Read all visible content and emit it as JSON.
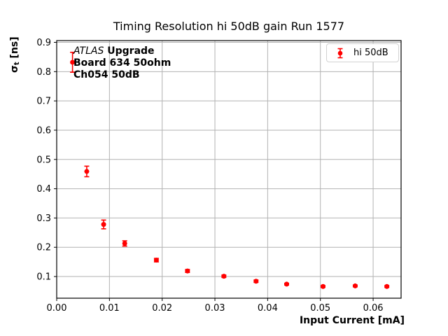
{
  "chart_data": {
    "type": "scatter",
    "title": "Timing Resolution hi 50dB gain Run 1577",
    "xlabel": "Input Current [mA]",
    "ylabel": {
      "symbol": "σ",
      "subscript": "t",
      "units": " [ns]"
    },
    "xlim": [
      0.0,
      0.0653
    ],
    "ylim": [
      0.026,
      0.906
    ],
    "xtick_values": [
      0.0,
      0.01,
      0.02,
      0.03,
      0.04,
      0.05,
      0.06
    ],
    "xtick_labels": [
      "0.00",
      "0.01",
      "0.02",
      "0.03",
      "0.04",
      "0.05",
      "0.06"
    ],
    "ytick_values": [
      0.1,
      0.2,
      0.3,
      0.4,
      0.5,
      0.6,
      0.7,
      0.8,
      0.9
    ],
    "ytick_labels": [
      "0.1",
      "0.2",
      "0.3",
      "0.4",
      "0.5",
      "0.6",
      "0.7",
      "0.8",
      "0.9"
    ],
    "grid": true,
    "grid_color": "#b2b2b2",
    "frame_color": "#000000",
    "legend": {
      "label": "hi 50dB",
      "location": "upper right"
    },
    "annotation": {
      "line1_italic": "ATLAS",
      "line1_bold": "Upgrade",
      "line2": "Board 634 50ohm",
      "line3": "Ch054 50dB"
    },
    "series": [
      {
        "name": "hi 50dB",
        "color": "#ff0000",
        "marker": "circle",
        "x": [
          0.003,
          0.0057,
          0.0089,
          0.0129,
          0.0189,
          0.0248,
          0.0317,
          0.0378,
          0.0436,
          0.0505,
          0.0566,
          0.0626
        ],
        "y": [
          0.832,
          0.459,
          0.278,
          0.213,
          0.156,
          0.119,
          0.101,
          0.084,
          0.074,
          0.066,
          0.068,
          0.066
        ],
        "yerr": [
          0.034,
          0.018,
          0.015,
          0.009,
          0.006,
          0.005,
          0.004,
          0.004,
          0.003,
          0.003,
          0.003,
          0.003
        ]
      }
    ]
  }
}
